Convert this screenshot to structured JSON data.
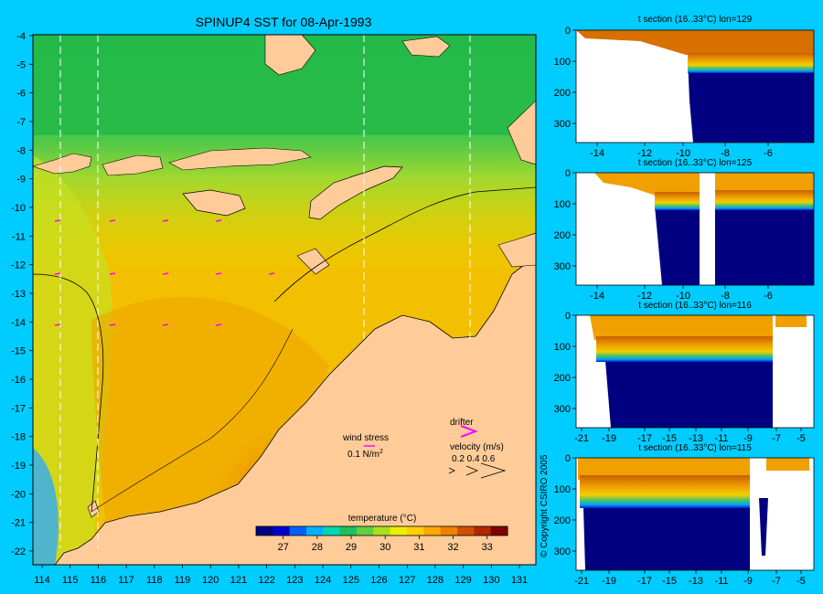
{
  "map": {
    "title": "SPINUP4 SST for 08-Apr-1993",
    "x_ticks": [
      "114",
      "115",
      "116",
      "117",
      "118",
      "119",
      "120",
      "121",
      "122",
      "123",
      "124",
      "125",
      "126",
      "127",
      "128",
      "129",
      "130",
      "131"
    ],
    "y_ticks": [
      "-4",
      "-5",
      "-6",
      "-7",
      "-8",
      "-9",
      "-10",
      "-11",
      "-12",
      "-13",
      "-14",
      "-15",
      "-16",
      "-17",
      "-18",
      "-19",
      "-20",
      "-21",
      "-22"
    ],
    "colorbar": {
      "label": "temperature (°C)",
      "ticks": [
        "27",
        "28",
        "29",
        "30",
        "31",
        "32",
        "33"
      ],
      "tick_values": [
        27,
        28,
        29,
        30,
        31,
        32,
        33
      ],
      "range": [
        26.2,
        33.6
      ],
      "colors": [
        "#000080",
        "#0000d0",
        "#0060ff",
        "#00b0ff",
        "#00d8b0",
        "#20c060",
        "#60d040",
        "#a8e020",
        "#e8f000",
        "#ffd000",
        "#ffa800",
        "#f08000",
        "#d05000",
        "#b02800",
        "#800000"
      ]
    },
    "legend": {
      "wind_stress_label": "wind stress",
      "wind_stress_scale": "0.1 N/m",
      "wind_stress_sup": "2",
      "drifter_label": "drifter",
      "velocity_label": "velocity (m/s)",
      "velocity_scale": "0.2 0.4 0.6"
    },
    "copyright": "© Copyright CSIRO 2005",
    "colors": {
      "land": "#ffcc99",
      "wind_arrow": "#ff00ff",
      "background": "#00ccff"
    }
  },
  "sections": [
    {
      "title": "t section (16..33°C) lon=129",
      "x_ticks": [
        "-14",
        "-12",
        "-10",
        "-8",
        "-6"
      ],
      "y_ticks": [
        "0",
        "100",
        "200",
        "300"
      ]
    },
    {
      "title": "t section (16..33°C) lon=125",
      "x_ticks": [
        "-14",
        "-12",
        "-10",
        "-8",
        "-6"
      ],
      "y_ticks": [
        "0",
        "100",
        "200",
        "300"
      ]
    },
    {
      "title": "t section (16..33°C) lon=116",
      "x_ticks": [
        "-21",
        "-19",
        "-17",
        "-15",
        "-13",
        "-11",
        "-9",
        "-7",
        "-5"
      ],
      "y_ticks": [
        "0",
        "100",
        "200",
        "300"
      ]
    },
    {
      "title": "t section (16..33°C) lon=115",
      "x_ticks": [
        "-21",
        "-19",
        "-17",
        "-15",
        "-13",
        "-11",
        "-9",
        "-7",
        "-5"
      ],
      "y_ticks": [
        "0",
        "100",
        "200",
        "300"
      ]
    }
  ]
}
